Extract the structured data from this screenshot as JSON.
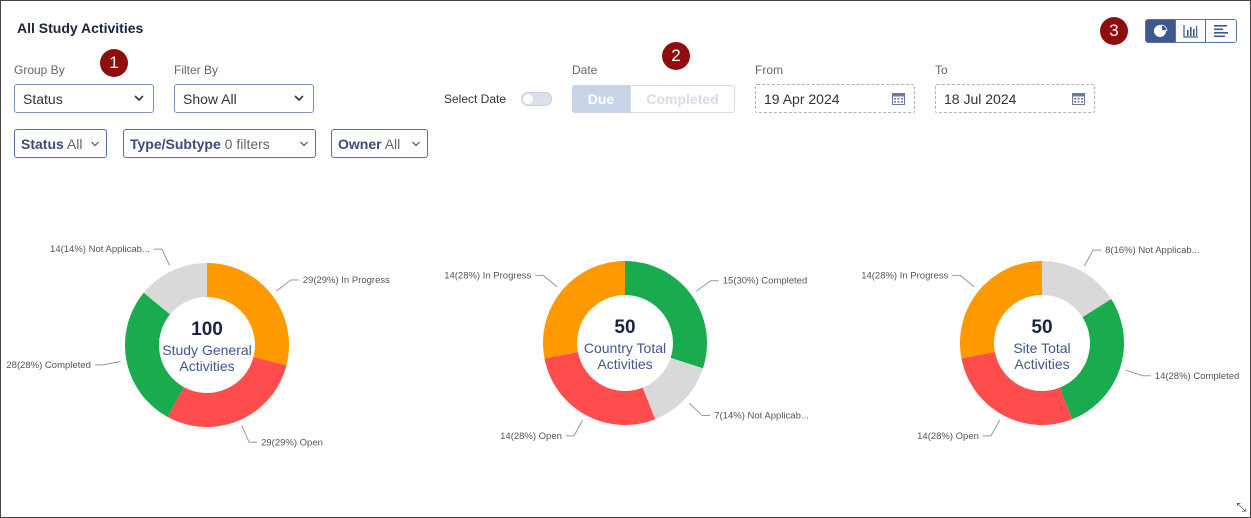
{
  "header": {
    "title": "All Study Activities"
  },
  "badges": [
    "1",
    "2",
    "3"
  ],
  "group_by": {
    "label": "Group By",
    "value": "Status"
  },
  "filter_by": {
    "label": "Filter By",
    "value": "Show All"
  },
  "select_date": {
    "label": "Select Date",
    "on": false
  },
  "date": {
    "label": "Date",
    "due_label": "Due",
    "completed_label": "Completed",
    "selected": "Due"
  },
  "from": {
    "label": "From",
    "value": "19 Apr 2024"
  },
  "to": {
    "label": "To",
    "value": "18 Jul 2024"
  },
  "chips": [
    {
      "name": "Status",
      "value": "All"
    },
    {
      "name": "Type/Subtype",
      "value": "0 filters"
    },
    {
      "name": "Owner",
      "value": "All"
    }
  ],
  "view_toggle": {
    "selected": "pie-chart-icon",
    "icons": [
      "pie-chart-icon",
      "bar-chart-icon",
      "horizontal-bar-icon"
    ]
  },
  "colors": {
    "in_progress": "#ff9900",
    "open": "#ff4d4d",
    "completed": "#1aab4f",
    "not_applicable": "#d9d9d9",
    "accent": "#3e5790"
  },
  "chart_data": [
    {
      "type": "pie",
      "center_value": "100",
      "center_label_line1": "Study General",
      "center_label_line2": "Activities",
      "slices": [
        {
          "value": 29,
          "label": "29(29%) In Progress",
          "color": "#ff9900"
        },
        {
          "value": 29,
          "label": "29(29%) Open",
          "color": "#ff4d4d"
        },
        {
          "value": 28,
          "label": "28(28%) Completed",
          "color": "#1aab4f"
        },
        {
          "value": 14,
          "label": "14(14%) Not Applicab...",
          "color": "#d9d9d9"
        }
      ]
    },
    {
      "type": "pie",
      "center_value": "50",
      "center_label_line1": "Country Total",
      "center_label_line2": "Activities",
      "slices": [
        {
          "value": 15,
          "label": "15(30%) Completed",
          "color": "#1aab4f"
        },
        {
          "value": 7,
          "label": "7(14%) Not Applicab...",
          "color": "#d9d9d9"
        },
        {
          "value": 14,
          "label": "14(28%) Open",
          "color": "#ff4d4d"
        },
        {
          "value": 14,
          "label": "14(28%) In Progress",
          "color": "#ff9900"
        }
      ]
    },
    {
      "type": "pie",
      "center_value": "50",
      "center_label_line1": "Site Total",
      "center_label_line2": "Activities",
      "slices": [
        {
          "value": 8,
          "label": "8(16%) Not Applicab...",
          "color": "#d9d9d9"
        },
        {
          "value": 14,
          "label": "14(28%) Completed",
          "color": "#1aab4f"
        },
        {
          "value": 14,
          "label": "14(28%) Open",
          "color": "#ff4d4d"
        },
        {
          "value": 14,
          "label": "14(28%) In Progress",
          "color": "#ff9900"
        }
      ]
    }
  ]
}
